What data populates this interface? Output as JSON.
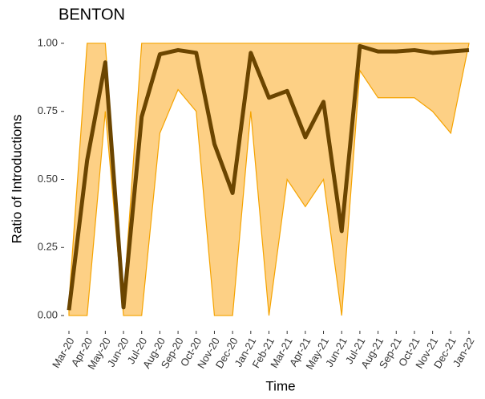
{
  "chart_data": {
    "type": "line_ribbon",
    "title": "BENTON",
    "xlabel": "Time",
    "ylabel": "Ratio of Introductions",
    "categories": [
      "Mar-20",
      "Apr-20",
      "May-20",
      "Jun-20",
      "Jul-20",
      "Aug-20",
      "Sep-20",
      "Oct-20",
      "Nov-20",
      "Dec-20",
      "Jan-21",
      "Feb-21",
      "Mar-21",
      "Apr-21",
      "May-21",
      "Jun-21",
      "Jul-21",
      "Aug-21",
      "Sep-21",
      "Oct-21",
      "Nov-21",
      "Dec-21",
      "Jan-22"
    ],
    "line": {
      "color": "#6b4500",
      "values": [
        0.02,
        0.57,
        0.93,
        0.03,
        0.73,
        0.96,
        0.975,
        0.965,
        0.63,
        0.45,
        0.965,
        0.8,
        0.825,
        0.655,
        0.785,
        0.31,
        0.99,
        0.97,
        0.97,
        0.975,
        0.965,
        0.97,
        0.975
      ]
    },
    "band": {
      "fill": "#fdd085",
      "stroke": "#f5a300",
      "upper": [
        0.05,
        1,
        1,
        0.05,
        1,
        1,
        1,
        1,
        1,
        1,
        1,
        1,
        1,
        1,
        1,
        1,
        1,
        1,
        1,
        1,
        1,
        1,
        1
      ],
      "lower": [
        0,
        0,
        0.75,
        0,
        0,
        0.67,
        0.83,
        0.75,
        0,
        0,
        0.75,
        0,
        0.5,
        0.4,
        0.5,
        0,
        0.9,
        0.8,
        0.8,
        0.8,
        0.75,
        0.67,
        1
      ]
    },
    "ylim": [
      -0.05,
      1.05
    ],
    "yticks": [
      {
        "value": 0,
        "label": "0.00"
      },
      {
        "value": 0.25,
        "label": "0.25"
      },
      {
        "value": 0.5,
        "label": "0.50"
      },
      {
        "value": 0.75,
        "label": "0.75"
      },
      {
        "value": 1,
        "label": "1.00"
      }
    ]
  }
}
